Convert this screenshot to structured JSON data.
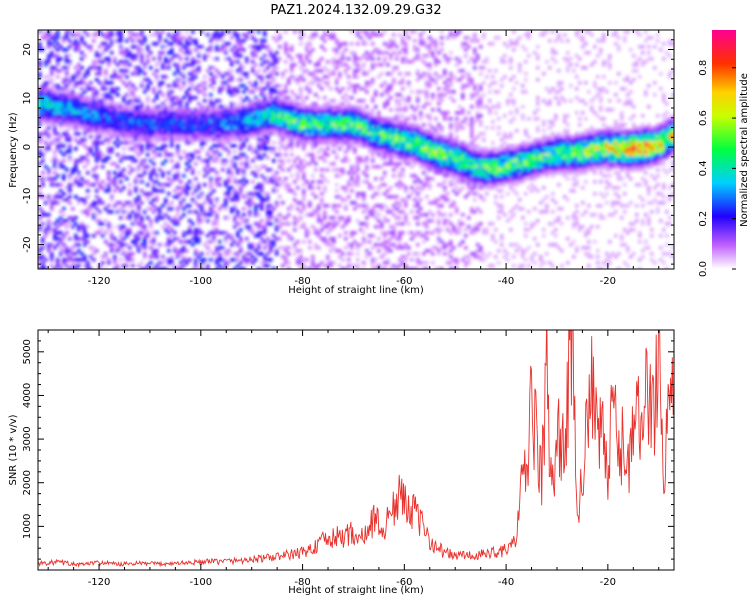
{
  "figure_title": "PAZ1.2024.132.09.29.G32",
  "chart_data": [
    {
      "type": "heatmap",
      "title": "PAZ1.2024.132.09.29.G32",
      "xlabel": "Height of straight line (km)",
      "ylabel": "Frequency (Hz)",
      "xlim": [
        -132,
        -7
      ],
      "ylim": [
        -25,
        24
      ],
      "x_ticks": [
        -120,
        -100,
        -80,
        -60,
        -40,
        -20
      ],
      "y_ticks": [
        20,
        10,
        0,
        -10,
        -20
      ],
      "ridge": {
        "x": [
          -131,
          -126,
          -122,
          -118,
          -112,
          -106,
          -100,
          -95,
          -90,
          -86,
          -80,
          -75,
          -70,
          -66,
          -62,
          -58,
          -54,
          -50,
          -46,
          -42,
          -38,
          -34,
          -30,
          -26,
          -22,
          -18,
          -14,
          -10,
          -7
        ],
        "freq": [
          9,
          8,
          7,
          6,
          5,
          5,
          5,
          5,
          6,
          7,
          5,
          5,
          5,
          3,
          2,
          1,
          -1,
          -2,
          -4,
          -4,
          -3,
          -2,
          -1,
          -1,
          0,
          0,
          0,
          1,
          3
        ],
        "amplitude": [
          0.45,
          0.4,
          0.35,
          0.3,
          0.3,
          0.3,
          0.3,
          0.35,
          0.4,
          0.5,
          0.6,
          0.55,
          0.6,
          0.55,
          0.6,
          0.6,
          0.65,
          0.6,
          0.55,
          0.6,
          0.6,
          0.55,
          0.6,
          0.65,
          0.7,
          0.85,
          1.0,
          0.8,
          0.7
        ]
      },
      "colorbar": {
        "label": "Normalized spectral amplitude",
        "ticks": [
          0.0,
          0.2,
          0.4,
          0.6,
          0.8
        ],
        "tick_labels": [
          "0.0",
          "0.2",
          "0.4",
          "0.6",
          "0.8"
        ],
        "range": [
          0,
          0.95
        ],
        "colormap": "gist_ncar_r / rainbow (white-purple-blue-cyan-green-yellow-red-magenta)"
      }
    },
    {
      "type": "line",
      "xlabel": "Height of straight line (km)",
      "ylabel": "SNR (10 * v/v)",
      "xlim": [
        -132,
        -7
      ],
      "ylim": [
        0,
        5500
      ],
      "x_ticks": [
        -120,
        -100,
        -80,
        -60,
        -40,
        -20
      ],
      "y_ticks": [
        1000,
        2000,
        3000,
        4000,
        5000
      ],
      "line_color": "#e8322d",
      "series": [
        {
          "x": [
            -132,
            -128,
            -124,
            -120,
            -116,
            -112,
            -108,
            -104,
            -100,
            -96,
            -92,
            -88,
            -84,
            -80,
            -78,
            -76,
            -74,
            -72,
            -70,
            -68,
            -66,
            -64,
            -62,
            -60,
            -58,
            -56,
            -54,
            -52,
            -50,
            -48,
            -46,
            -44,
            -42,
            -40,
            -38,
            -37,
            -36,
            -35,
            -34,
            -33,
            -32,
            -31,
            -30,
            -29,
            -28,
            -27,
            -26,
            -25,
            -24,
            -23,
            -22,
            -21,
            -20,
            -19,
            -18,
            -17,
            -16,
            -15,
            -14,
            -13,
            -12,
            -11,
            -10,
            -9,
            -8,
            -7
          ],
          "values": [
            150,
            180,
            120,
            170,
            130,
            150,
            140,
            160,
            180,
            200,
            220,
            260,
            320,
            400,
            500,
            650,
            720,
            780,
            850,
            700,
            1200,
            900,
            1500,
            1750,
            1300,
            900,
            550,
            400,
            320,
            350,
            300,
            380,
            420,
            450,
            700,
            1800,
            2400,
            3700,
            3000,
            2100,
            4700,
            1500,
            3400,
            2500,
            3900,
            5400,
            1200,
            2500,
            3100,
            4200,
            2600,
            3500,
            1800,
            3900,
            2800,
            2800,
            2600,
            3000,
            3400,
            3800,
            4000,
            3700,
            5300,
            1800,
            4300,
            4100
          ]
        }
      ]
    }
  ]
}
